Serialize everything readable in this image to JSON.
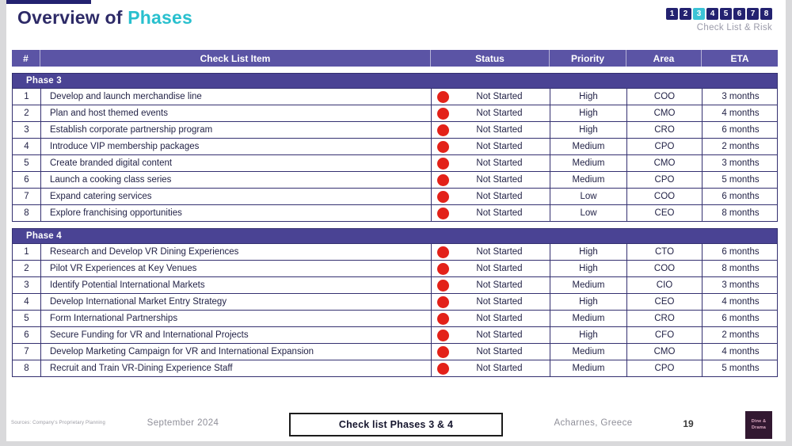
{
  "header": {
    "title_prefix": "Overview of",
    "title_accent": "Phases",
    "page_nav": {
      "pages": [
        "1",
        "2",
        "3",
        "4",
        "5",
        "6",
        "7",
        "8"
      ],
      "active": "3",
      "label": "Check List & Risk"
    }
  },
  "table": {
    "columns": [
      "#",
      "Check List Item",
      "Status",
      "Priority",
      "Area",
      "ETA"
    ],
    "status_dot_color": "#e32119",
    "phases": [
      {
        "name": "Phase 3",
        "rows": [
          {
            "num": "1",
            "item": "Develop and launch merchandise line",
            "status": "Not Started",
            "priority": "High",
            "area": "COO",
            "eta": "3 months"
          },
          {
            "num": "2",
            "item": "Plan and host themed events",
            "status": "Not Started",
            "priority": "High",
            "area": "CMO",
            "eta": "4 months"
          },
          {
            "num": "3",
            "item": "Establish corporate partnership program",
            "status": "Not Started",
            "priority": "High",
            "area": "CRO",
            "eta": "6 months"
          },
          {
            "num": "4",
            "item": "Introduce VIP membership packages",
            "status": "Not Started",
            "priority": "Medium",
            "area": "CPO",
            "eta": "2 months"
          },
          {
            "num": "5",
            "item": "Create branded digital content",
            "status": "Not Started",
            "priority": "Medium",
            "area": "CMO",
            "eta": "3 months"
          },
          {
            "num": "6",
            "item": "Launch a cooking class series",
            "status": "Not Started",
            "priority": "Medium",
            "area": "CPO",
            "eta": "5 months"
          },
          {
            "num": "7",
            "item": "Expand catering services",
            "status": "Not Started",
            "priority": "Low",
            "area": "COO",
            "eta": "6 months"
          },
          {
            "num": "8",
            "item": "Explore franchising opportunities",
            "status": "Not Started",
            "priority": "Low",
            "area": "CEO",
            "eta": "8 months"
          }
        ]
      },
      {
        "name": "Phase 4",
        "rows": [
          {
            "num": "1",
            "item": "Research and Develop VR Dining Experiences",
            "status": "Not Started",
            "priority": "High",
            "area": "CTO",
            "eta": "6 months"
          },
          {
            "num": "2",
            "item": "Pilot VR Experiences at Key Venues",
            "status": "Not Started",
            "priority": "High",
            "area": "COO",
            "eta": "8 months"
          },
          {
            "num": "3",
            "item": "Identify Potential International Markets",
            "status": "Not Started",
            "priority": "Medium",
            "area": "CIO",
            "eta": "3 months"
          },
          {
            "num": "4",
            "item": "Develop International Market Entry Strategy",
            "status": "Not Started",
            "priority": "High",
            "area": "CEO",
            "eta": "4 months"
          },
          {
            "num": "5",
            "item": "Form International Partnerships",
            "status": "Not Started",
            "priority": "Medium",
            "area": "CRO",
            "eta": "6 months"
          },
          {
            "num": "6",
            "item": "Secure Funding for VR and International Projects",
            "status": "Not Started",
            "priority": "High",
            "area": "CFO",
            "eta": "2 months"
          },
          {
            "num": "7",
            "item": "Develop Marketing Campaign for VR and International Expansion",
            "status": "Not Started",
            "priority": "Medium",
            "area": "CMO",
            "eta": "4 months"
          },
          {
            "num": "8",
            "item": "Recruit and Train VR-Dining Experience Staff",
            "status": "Not Started",
            "priority": "Medium",
            "area": "CPO",
            "eta": "5 months"
          }
        ]
      }
    ]
  },
  "footer": {
    "sources": "Sources: Company's Proprietary Planning",
    "date": "September 2024",
    "tagline": "Check list Phases 3 & 4",
    "location": "Acharnes, Greece",
    "page_number": "19",
    "logo_line1": "Dine &",
    "logo_line2": "Drama"
  },
  "colors": {
    "accent_teal": "#29c0ce",
    "title_navy": "#2d2a67",
    "header_band_purple": "#5b54a5",
    "phase_band_purple": "#4a4394",
    "table_border": "#343070",
    "status_red": "#e32119",
    "nav_box_navy": "#232270",
    "nav_box_active_teal": "#3cc3d6",
    "footer_gray": "#8f8f99",
    "logo_bg": "#321831",
    "logo_text": "#dca9c2"
  }
}
